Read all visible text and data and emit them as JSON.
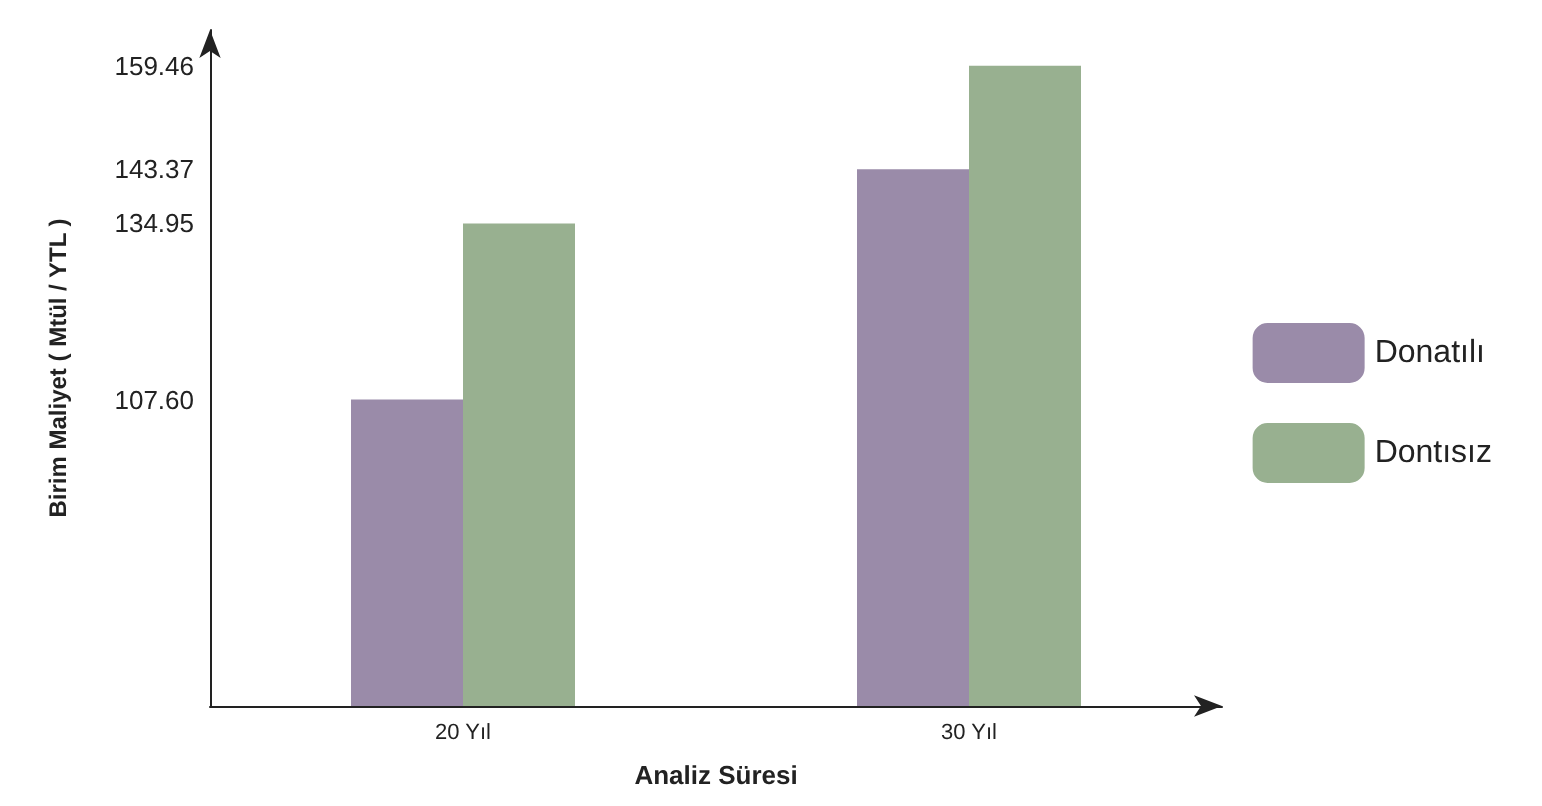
{
  "chart_data": {
    "type": "bar",
    "xlabel": "Analiz Süresi",
    "ylabel": "Birim Maliyet ( Mtül / YTL )",
    "categories": [
      "20 Yıl",
      "30 Yıl"
    ],
    "series": [
      {
        "name": "Donatılı",
        "color": "#9a8ba9",
        "values": [
          107.6,
          143.37
        ]
      },
      {
        "name": "Dontısız",
        "color": "#98b090",
        "values": [
          134.95,
          159.46
        ]
      }
    ],
    "ylim": [
      60,
      165
    ],
    "yticks": [
      {
        "value": 107.6,
        "label": "107.60"
      },
      {
        "value": 134.95,
        "label": "134.95"
      },
      {
        "value": 143.37,
        "label": "143.37"
      },
      {
        "value": 159.46,
        "label": "159.46"
      }
    ],
    "grid": false,
    "legend": "right"
  }
}
